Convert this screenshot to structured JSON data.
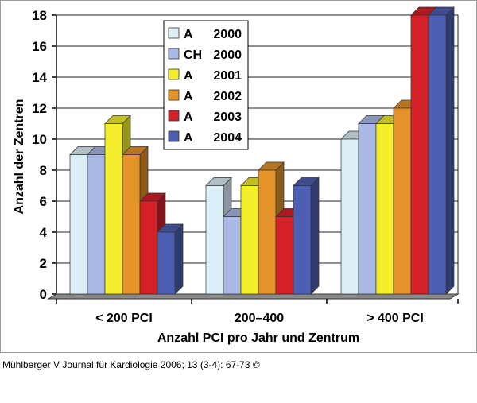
{
  "chart_data": {
    "type": "bar",
    "title": "",
    "xlabel": "Anzahl PCI pro Jahr und Zentrum",
    "ylabel": "Anzahl der Zentren",
    "ylim": [
      0,
      18
    ],
    "yticks": [
      "0",
      "2",
      "4",
      "6",
      "8",
      "10",
      "12",
      "14",
      "16",
      "18"
    ],
    "grid": true,
    "legend_position": "top-center",
    "categories": [
      "< 200 PCI",
      "200–400",
      "> 400 PCI"
    ],
    "series": [
      {
        "name": "A 2000",
        "legend_prefix": "A",
        "legend_year": "2000",
        "color": "#dceef6",
        "values": [
          9,
          7,
          10
        ]
      },
      {
        "name": "CH 2000",
        "legend_prefix": "CH",
        "legend_year": "2000",
        "color": "#aab9e6",
        "values": [
          9,
          5,
          11
        ]
      },
      {
        "name": "A 2001",
        "legend_prefix": "A",
        "legend_year": "2001",
        "color": "#f4ee2c",
        "values": [
          11,
          7,
          11
        ]
      },
      {
        "name": "A 2002",
        "legend_prefix": "A",
        "legend_year": "2002",
        "color": "#e4922a",
        "values": [
          9,
          8,
          12
        ]
      },
      {
        "name": "A 2003",
        "legend_prefix": "A",
        "legend_year": "2003",
        "color": "#d42128",
        "values": [
          6,
          5,
          18
        ]
      },
      {
        "name": "A 2004",
        "legend_prefix": "A",
        "legend_year": "2004",
        "color": "#4d5fb2",
        "values": [
          4,
          7,
          18
        ]
      }
    ]
  },
  "caption": "Mühlberger V Journal für Kardiologie 2006; 13 (3-4): 67-73 ©"
}
